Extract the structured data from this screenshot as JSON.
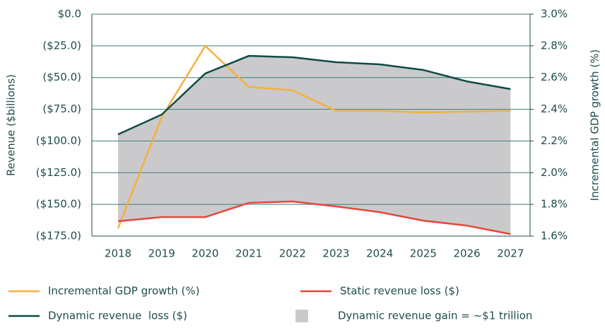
{
  "chart_data": {
    "type": "line",
    "categories": [
      "2018",
      "2019",
      "2020",
      "2021",
      "2022",
      "2023",
      "2024",
      "2025",
      "2026",
      "2027"
    ],
    "ylabel": "Revenue ($billions)",
    "y2label": "Incremental GDP growth (%)",
    "ylim": [
      -175,
      0
    ],
    "yticks": [
      {
        "value": 0,
        "label": "$0.0"
      },
      {
        "value": -25,
        "label": "($25.0)"
      },
      {
        "value": -50,
        "label": "($50.0)"
      },
      {
        "value": -75,
        "label": "($75.0)"
      },
      {
        "value": -100,
        "label": "($100.0)"
      },
      {
        "value": -125,
        "label": "($125.0)"
      },
      {
        "value": -150,
        "label": "($150.0)"
      },
      {
        "value": -175,
        "label": "($175.0)"
      }
    ],
    "y2lim": [
      1.6,
      3.0
    ],
    "y2ticks": [
      {
        "value": 3.0,
        "label": "3.0%"
      },
      {
        "value": 2.8,
        "label": "2.8%"
      },
      {
        "value": 2.6,
        "label": "2.6%"
      },
      {
        "value": 2.4,
        "label": "2.4%"
      },
      {
        "value": 2.2,
        "label": "2.2%"
      },
      {
        "value": 2.0,
        "label": "2.0%"
      },
      {
        "value": 1.8,
        "label": "1.8%"
      },
      {
        "value": 1.6,
        "label": "1.6%"
      }
    ],
    "grid": true,
    "series": [
      {
        "name": "Incremental GDP growth (%)",
        "color": "#f5b03e",
        "axis": "y2",
        "values": [
          1.65,
          2.35,
          2.8,
          2.54,
          2.52,
          2.39,
          2.39,
          2.38,
          2.385,
          2.39
        ]
      },
      {
        "name": "Static revenue loss ($)",
        "color": "#e5483a",
        "values": [
          -163.3,
          -160,
          -160,
          -148.8,
          -147.7,
          -151.6,
          -156.1,
          -162.8,
          -166.7,
          -173.4
        ]
      },
      {
        "name": "Dynamic revenue  loss ($)",
        "color": "#0e4b45",
        "values": [
          -94.8,
          -79.2,
          -46.8,
          -32.9,
          -34.0,
          -37.9,
          -39.6,
          -44.0,
          -53.0,
          -59.1
        ]
      }
    ],
    "area": {
      "name": "Dynamic revenue gain = ~$1 trillion",
      "color": "#cacacc"
    }
  }
}
